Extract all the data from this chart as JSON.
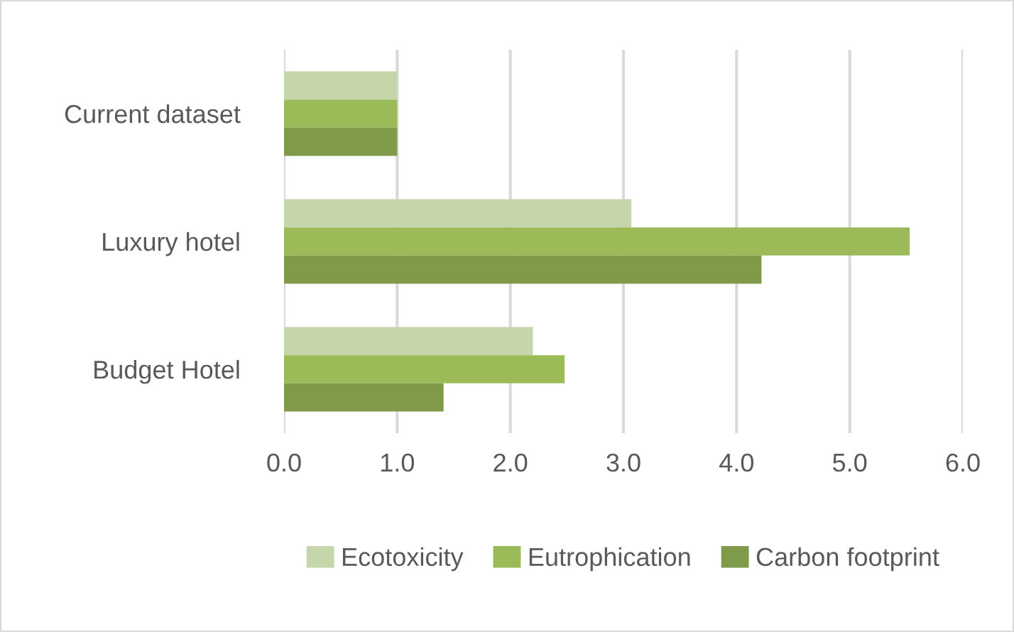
{
  "chart_data": {
    "type": "bar",
    "orientation": "horizontal",
    "categories": [
      "Current dataset",
      "Luxury hotel",
      "Budget Hotel"
    ],
    "series": [
      {
        "name": "Ecotoxicity",
        "color": "#c5d6ab",
        "values": [
          1.0,
          3.07,
          2.2
        ]
      },
      {
        "name": "Eutrophication",
        "color": "#9bbb59",
        "values": [
          1.0,
          5.53,
          2.48
        ]
      },
      {
        "name": "Carbon footprint",
        "color": "#7f9a48",
        "values": [
          1.0,
          4.22,
          1.41
        ]
      }
    ],
    "xlim": [
      0,
      6
    ],
    "xticks": [
      {
        "value": 0,
        "label": "0.0"
      },
      {
        "value": 1,
        "label": "1.0"
      },
      {
        "value": 2,
        "label": "2.0"
      },
      {
        "value": 3,
        "label": "3.0"
      },
      {
        "value": 4,
        "label": "4.0"
      },
      {
        "value": 5,
        "label": "5.0"
      },
      {
        "value": 6,
        "label": "6.0"
      }
    ],
    "grid": "x",
    "legend": "bottom"
  }
}
